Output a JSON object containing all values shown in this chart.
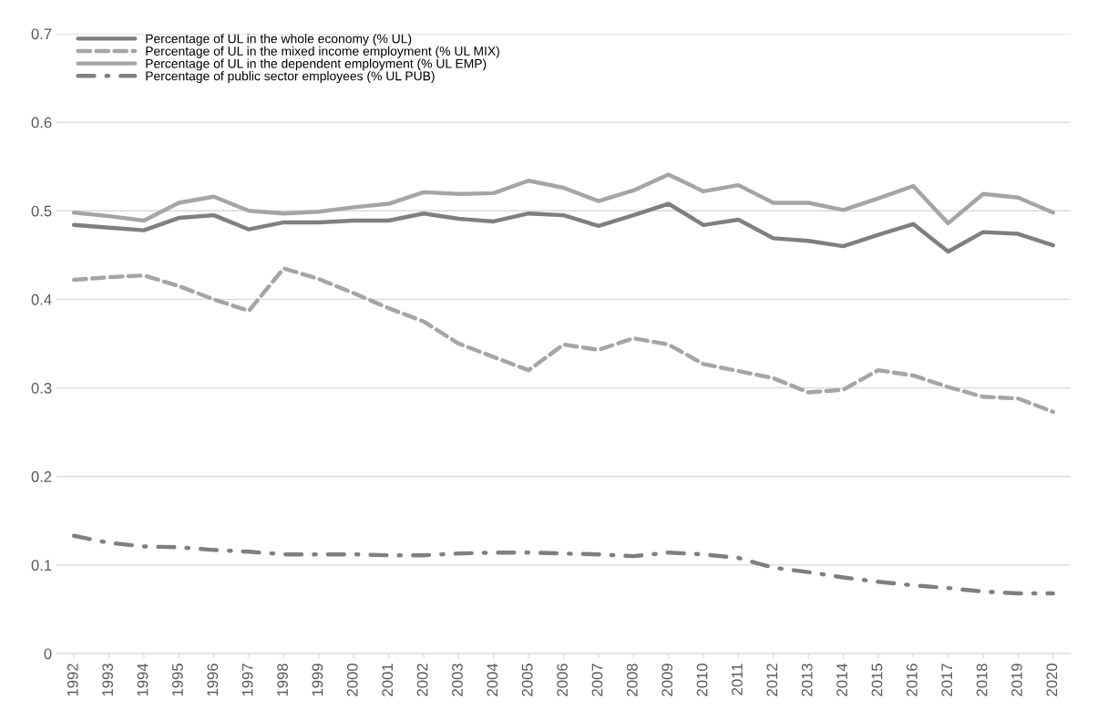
{
  "chart_data": {
    "type": "line",
    "categories": [
      "1992",
      "1993",
      "1994",
      "1995",
      "1996",
      "1997",
      "1998",
      "1999",
      "2000",
      "2001",
      "2002",
      "2003",
      "2004",
      "2005",
      "2006",
      "2007",
      "2008",
      "2009",
      "2010",
      "2011",
      "2012",
      "2013",
      "2014",
      "2015",
      "2016",
      "2017",
      "2018",
      "2019",
      "2020"
    ],
    "series": [
      {
        "name": "Percentage of UL in the whole economy (% UL)",
        "color": "#7f7f7f",
        "line_style": "solid",
        "values": [
          0.484,
          0.481,
          0.478,
          0.492,
          0.495,
          0.479,
          0.487,
          0.487,
          0.489,
          0.489,
          0.497,
          0.491,
          0.488,
          0.497,
          0.495,
          0.483,
          0.495,
          0.508,
          0.484,
          0.49,
          0.469,
          0.466,
          0.46,
          0.473,
          0.485,
          0.454,
          0.476,
          0.474,
          0.461
        ]
      },
      {
        "name": "Percentage of UL in the mixed income employment (% UL MIX)",
        "color": "#a5a5a5",
        "line_style": "dashed",
        "values": [
          0.422,
          0.425,
          0.427,
          0.415,
          0.4,
          0.387,
          0.435,
          0.423,
          0.407,
          0.39,
          0.375,
          0.35,
          0.335,
          0.32,
          0.349,
          0.343,
          0.356,
          0.349,
          0.327,
          0.319,
          0.311,
          0.295,
          0.298,
          0.32,
          0.314,
          0.301,
          0.29,
          0.288,
          0.273
        ]
      },
      {
        "name": "Percentage of UL in the dependent employment (% UL EMP)",
        "color": "#a5a5a5",
        "line_style": "solid",
        "values": [
          0.498,
          0.494,
          0.489,
          0.509,
          0.516,
          0.5,
          0.497,
          0.499,
          0.504,
          0.508,
          0.521,
          0.519,
          0.52,
          0.534,
          0.526,
          0.511,
          0.523,
          0.541,
          0.522,
          0.529,
          0.509,
          0.509,
          0.501,
          0.514,
          0.528,
          0.486,
          0.519,
          0.515,
          0.498
        ]
      },
      {
        "name": "Percentage of public sector employees (% UL PUB)",
        "color": "#7f7f7f",
        "line_style": "dashdot",
        "values": [
          0.133,
          0.125,
          0.121,
          0.12,
          0.117,
          0.115,
          0.112,
          0.112,
          0.112,
          0.111,
          0.111,
          0.113,
          0.114,
          0.114,
          0.113,
          0.112,
          0.11,
          0.114,
          0.112,
          0.108,
          0.097,
          0.092,
          0.086,
          0.081,
          0.077,
          0.074,
          0.07,
          0.068,
          0.068
        ]
      }
    ],
    "ylim": [
      0,
      0.7
    ],
    "yticks": [
      0,
      0.1,
      0.2,
      0.3,
      0.4,
      0.5,
      0.6,
      0.7
    ],
    "grid": "y",
    "legend": "top left",
    "marker": "none"
  }
}
